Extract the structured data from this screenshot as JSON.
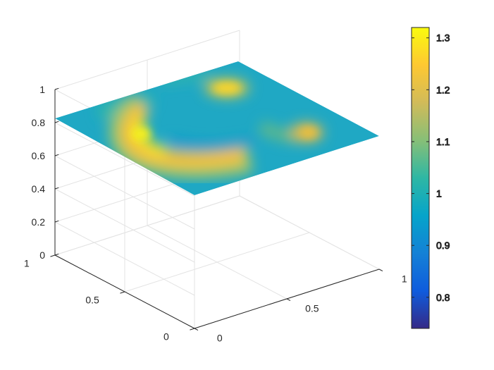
{
  "chart_data": {
    "type": "surface",
    "title": "",
    "xlabel": "",
    "ylabel": "",
    "zlabel": "",
    "xlim": [
      0,
      1
    ],
    "ylim": [
      0,
      1
    ],
    "zlim": [
      0,
      1
    ],
    "surface_z": 0.8,
    "x_ticks": [
      "0",
      "0.5",
      "1"
    ],
    "y_ticks": [
      "0",
      "0.5",
      "1"
    ],
    "z_ticks": [
      "0",
      "0.2",
      "0.4",
      "0.6",
      "0.8",
      "1"
    ],
    "grid": true,
    "colormap": "parula",
    "colorbar": {
      "location": "right",
      "range": [
        0.74,
        1.32
      ],
      "ticks": [
        "0.8",
        "0.9",
        "1",
        "1.1",
        "1.2",
        "1.3"
      ]
    },
    "color_values": {
      "background": 1.0,
      "features": [
        {
          "shape": "arc",
          "description": "crescent",
          "peak": 1.28
        },
        {
          "shape": "blob",
          "description": "upper spot",
          "peak": 1.27
        },
        {
          "shape": "blob",
          "description": "right spot",
          "peak": 1.2
        }
      ]
    },
    "colors": {
      "parula": [
        "#352a87",
        "#0f5cdd",
        "#1481d6",
        "#06a4ca",
        "#2eb7a4",
        "#87bf77",
        "#d1bb59",
        "#fec832",
        "#f9fb0e"
      ]
    }
  }
}
